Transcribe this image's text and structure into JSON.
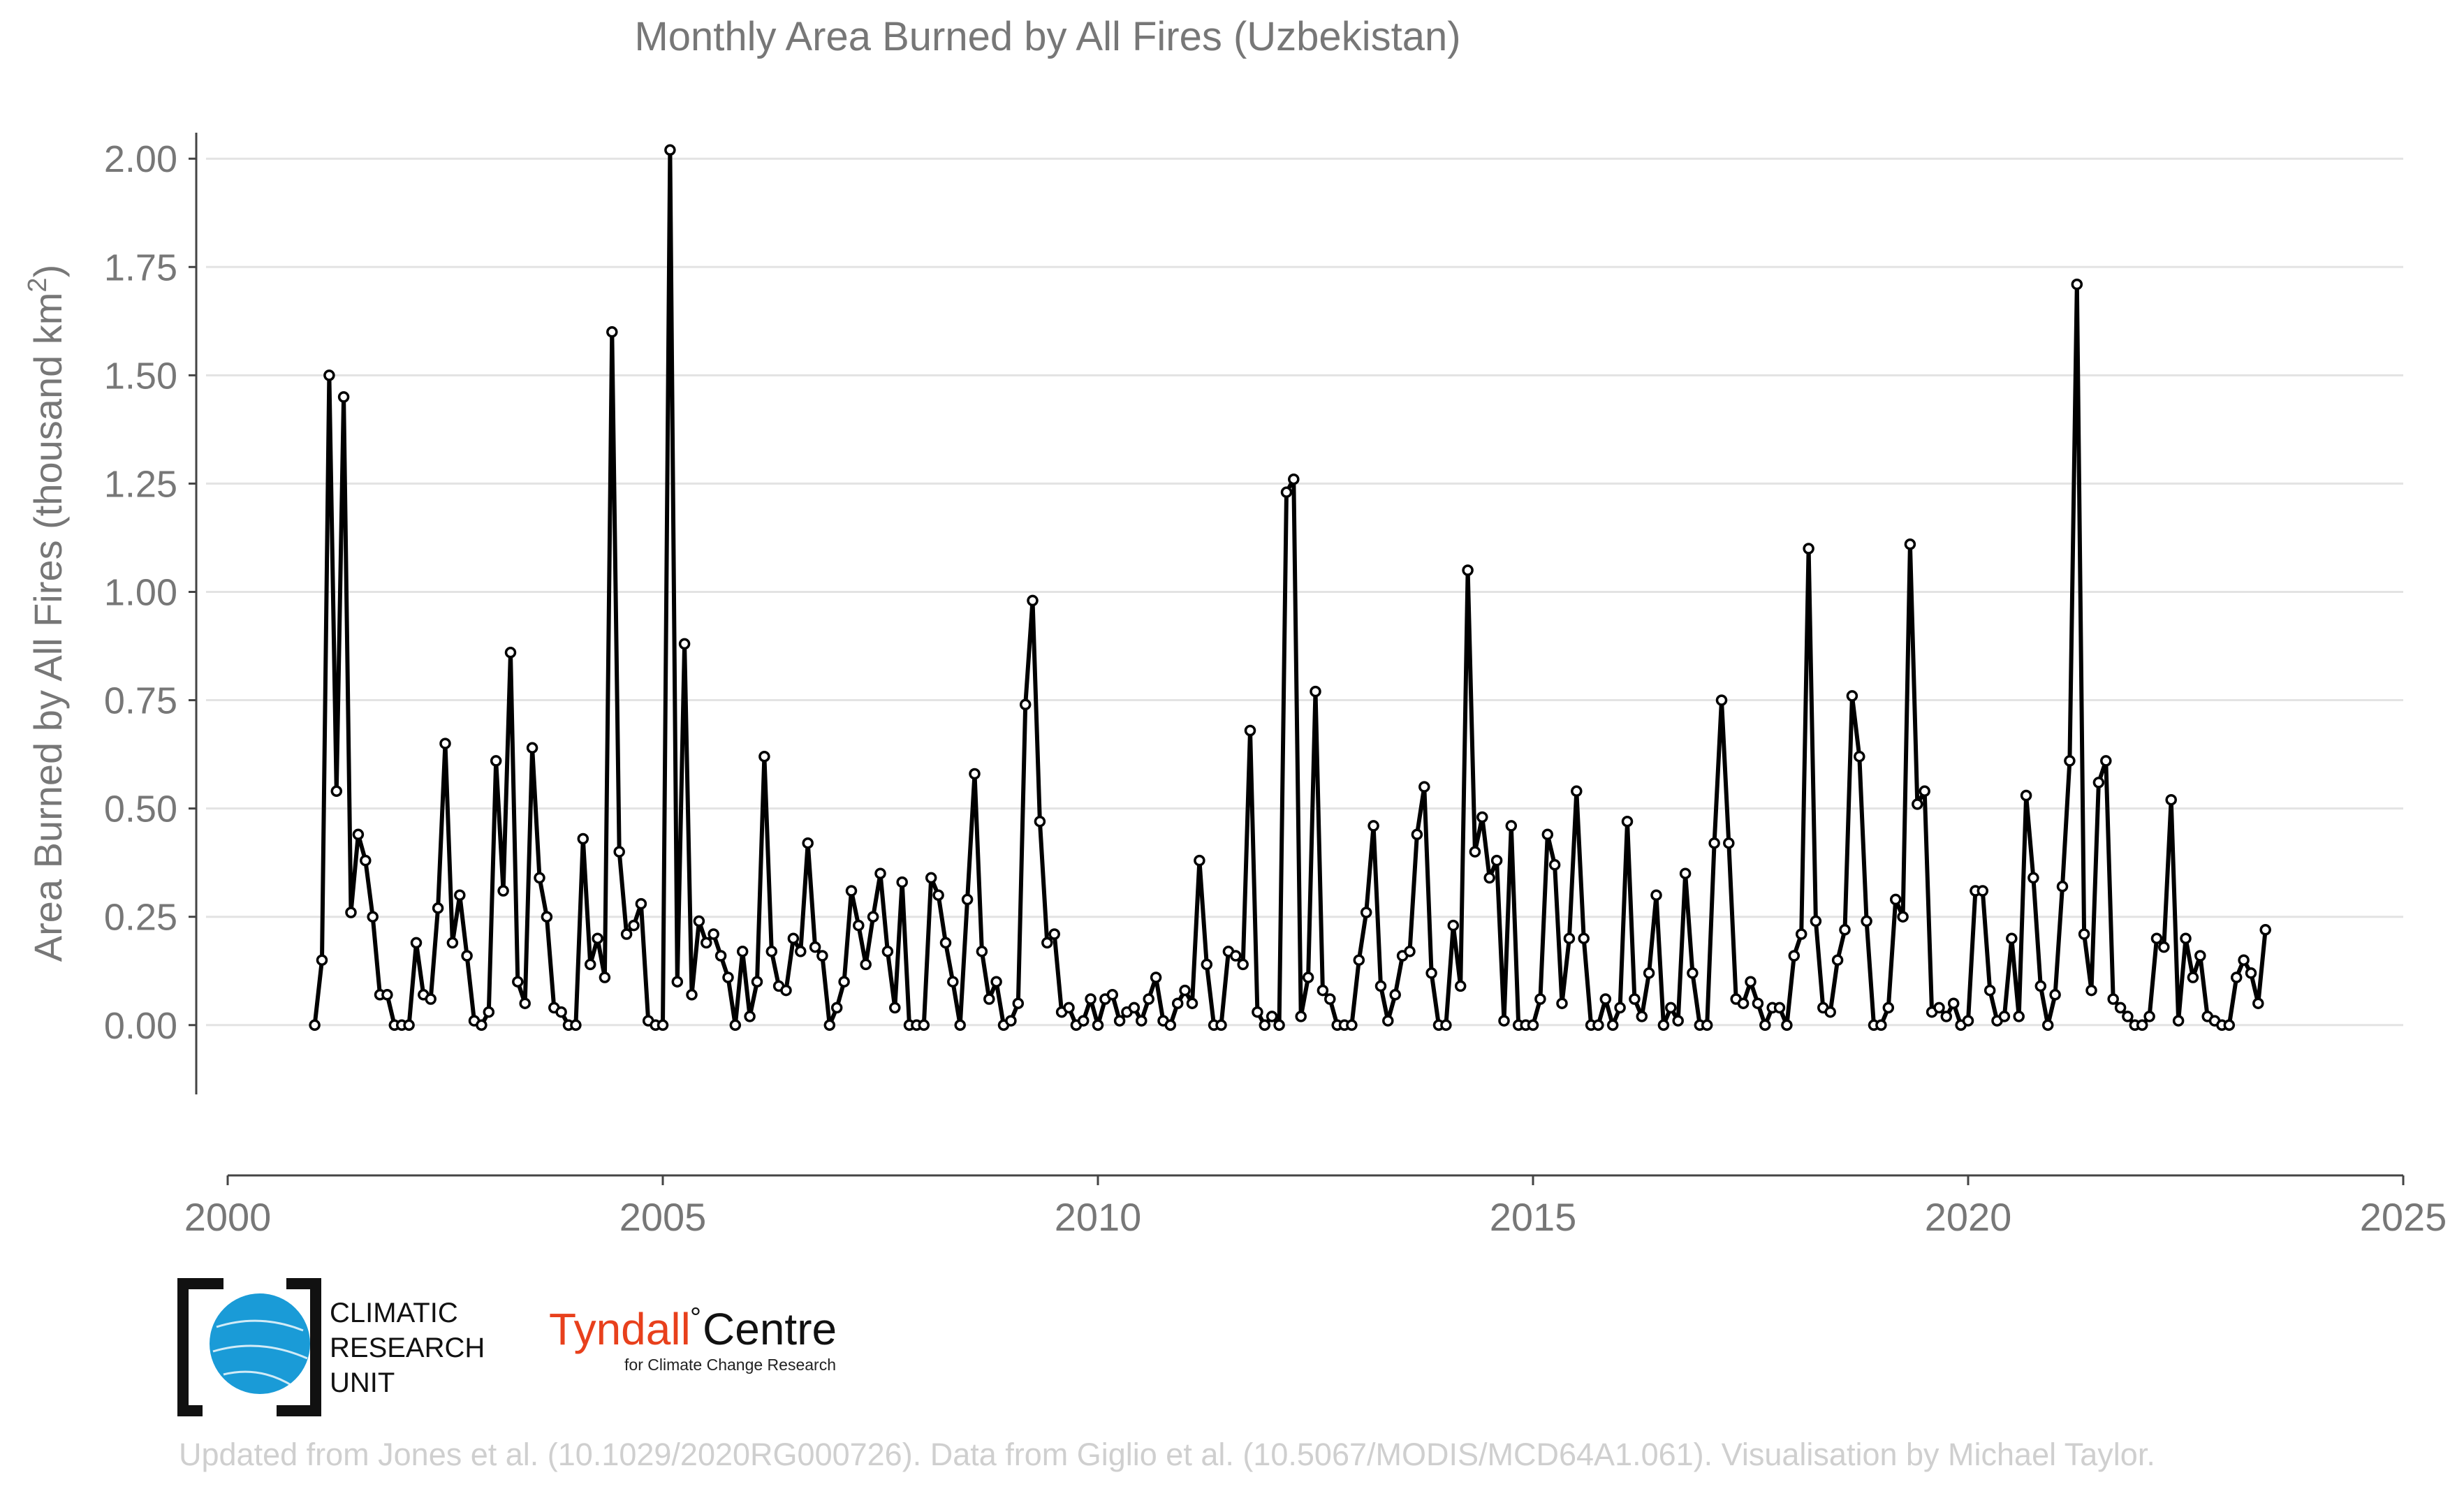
{
  "chart_data": {
    "type": "line",
    "title": "Monthly Area Burned by All Fires (Uzbekistan)",
    "ylabel_main": "Area Burned by All Fires (thousand km",
    "ylabel_sup": "2",
    "ylabel_close": ")",
    "xlabel": "",
    "xlim": [
      2000,
      2025
    ],
    "ylim": [
      -0.16,
      2.06
    ],
    "x_ticks": [
      2000,
      2005,
      2010,
      2015,
      2020,
      2025
    ],
    "x_tick_labels": [
      "2000",
      "2005",
      "2010",
      "2015",
      "2020",
      "2025"
    ],
    "y_ticks": [
      0,
      0.25,
      0.5,
      0.75,
      1.0,
      1.25,
      1.5,
      1.75,
      2.0
    ],
    "y_tick_labels": [
      "0.00",
      "0.25",
      "0.50",
      "0.75",
      "1.00",
      "1.25",
      "1.50",
      "1.75",
      "2.00"
    ],
    "grid": "horizontal",
    "line_color": "#000000",
    "marker": "white circle with black edge",
    "start": "2001-01",
    "series": [
      {
        "values": [
          0.0,
          0.15,
          1.5,
          0.54,
          1.45,
          0.26,
          0.44,
          0.38,
          0.25,
          0.07,
          0.07,
          0.0,
          0.0,
          0.0,
          0.19,
          0.07,
          0.06,
          0.27,
          0.65,
          0.19,
          0.3,
          0.16,
          0.01,
          0.0,
          0.03,
          0.61,
          0.31,
          0.86,
          0.1,
          0.05,
          0.64,
          0.34,
          0.25,
          0.04,
          0.03,
          0.0,
          0.0,
          0.43,
          0.14,
          0.2,
          0.11,
          1.6,
          0.4,
          0.21,
          0.23,
          0.28,
          0.01,
          0.0,
          0.0,
          2.02,
          0.1,
          0.88,
          0.07,
          0.24,
          0.19,
          0.21,
          0.16,
          0.11,
          0.0,
          0.17,
          0.02,
          0.1,
          0.62,
          0.17,
          0.09,
          0.08,
          0.2,
          0.17,
          0.42,
          0.18,
          0.16,
          0.0,
          0.04,
          0.1,
          0.31,
          0.23,
          0.14,
          0.25,
          0.35,
          0.17,
          0.04,
          0.33,
          0.0,
          0.0,
          0.0,
          0.34,
          0.3,
          0.19,
          0.1,
          0.0,
          0.29,
          0.58,
          0.17,
          0.06,
          0.1,
          0.0,
          0.01,
          0.05,
          0.74,
          0.98,
          0.47,
          0.19,
          0.21,
          0.03,
          0.04,
          0.0,
          0.01,
          0.06,
          0.0,
          0.06,
          0.07,
          0.01,
          0.03,
          0.04,
          0.01,
          0.06,
          0.11,
          0.01,
          0.0,
          0.05,
          0.08,
          0.05,
          0.38,
          0.14,
          0.0,
          0.0,
          0.17,
          0.16,
          0.14,
          0.68,
          0.03,
          0.0,
          0.02,
          0.0,
          1.23,
          1.26,
          0.02,
          0.11,
          0.77,
          0.08,
          0.06,
          0.0,
          0.0,
          0.0,
          0.15,
          0.26,
          0.46,
          0.09,
          0.01,
          0.07,
          0.16,
          0.17,
          0.44,
          0.55,
          0.12,
          0.0,
          0.0,
          0.23,
          0.09,
          1.05,
          0.4,
          0.48,
          0.34,
          0.38,
          0.01,
          0.46,
          0.0,
          0.0,
          0.0,
          0.06,
          0.44,
          0.37,
          0.05,
          0.2,
          0.54,
          0.2,
          0.0,
          0.0,
          0.06,
          0.0,
          0.04,
          0.47,
          0.06,
          0.02,
          0.12,
          0.3,
          0.0,
          0.04,
          0.01,
          0.35,
          0.12,
          0.0,
          0.0,
          0.42,
          0.75,
          0.42,
          0.06,
          0.05,
          0.1,
          0.05,
          0.0,
          0.04,
          0.04,
          0.0,
          0.16,
          0.21,
          1.1,
          0.24,
          0.04,
          0.03,
          0.15,
          0.22,
          0.76,
          0.62,
          0.24,
          0.0,
          0.0,
          0.04,
          0.29,
          0.25,
          1.11,
          0.51,
          0.54,
          0.03,
          0.04,
          0.02,
          0.05,
          0.0,
          0.01,
          0.31,
          0.31,
          0.08,
          0.01,
          0.02,
          0.2,
          0.02,
          0.53,
          0.34,
          0.09,
          0.0,
          0.07,
          0.32,
          0.61,
          1.71,
          0.21,
          0.08,
          0.56,
          0.61,
          0.06,
          0.04,
          0.02,
          0.0,
          0.0,
          0.02,
          0.2,
          0.18,
          0.52,
          0.01,
          0.2,
          0.11,
          0.16,
          0.02,
          0.01,
          0.0,
          0.0,
          0.11,
          0.15,
          0.12,
          0.05,
          0.22
        ]
      }
    ]
  },
  "logos": {
    "cru_line1": "CLIMATIC",
    "cru_line2": "RESEARCH",
    "cru_line3": "UNIT",
    "tyndall_name": "Tyndall",
    "tyndall_degree": "°",
    "tyndall_centre": "Centre",
    "tyndall_sub": "for Climate Change Research",
    "tyndall_color": "#e8401c",
    "cru_globe_color": "#1a9bd7"
  },
  "footer": "Updated from Jones et al. (10.1029/2020RG000726). Data from Giglio et al. (10.5067/MODIS/MCD64A1.061). Visualisation by Michael Taylor."
}
